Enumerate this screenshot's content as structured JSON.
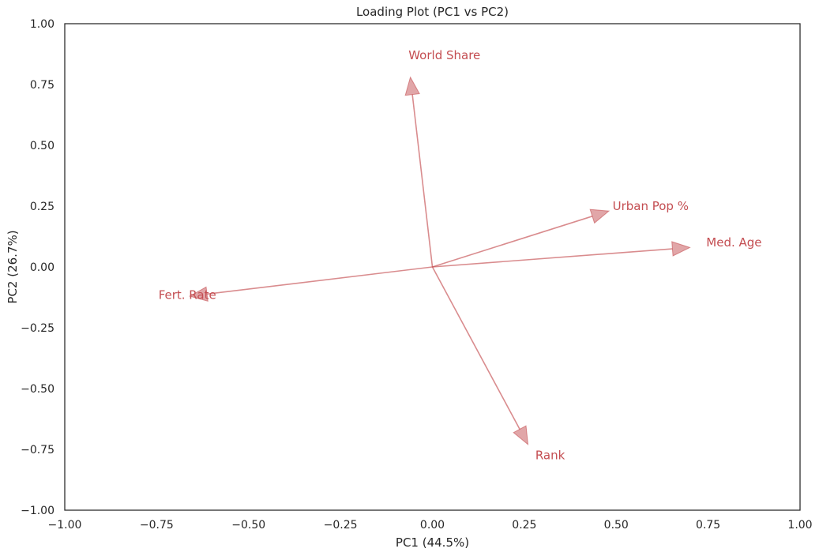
{
  "chart_data": {
    "type": "scatter",
    "subtype": "loading-plot-vectors",
    "title": "Loading Plot (PC1 vs PC2)",
    "xlabel": "PC1 (44.5%)",
    "ylabel": "PC2 (26.7%)",
    "xlim": [
      -1.0,
      1.0
    ],
    "ylim": [
      -1.0,
      1.0
    ],
    "xticks": [
      "−1.00",
      "−0.75",
      "−0.50",
      "−0.25",
      "0.00",
      "0.25",
      "0.50",
      "0.75",
      "1.00"
    ],
    "yticks": [
      "1.00",
      "0.75",
      "0.50",
      "0.25",
      "0.00",
      "−0.25",
      "−0.50",
      "−0.75",
      "−1.00"
    ],
    "xtick_values": [
      -1.0,
      -0.75,
      -0.5,
      -0.25,
      0.0,
      0.25,
      0.5,
      0.75,
      1.0
    ],
    "ytick_values": [
      1.0,
      0.75,
      0.5,
      0.25,
      0.0,
      -0.25,
      -0.5,
      -0.75,
      -1.0
    ],
    "grid": false,
    "arrow_color": "#c44e52",
    "label_color": "#c44e52",
    "vectors": [
      {
        "name": "World Share",
        "x": -0.06,
        "y": 0.78,
        "label_x": -0.065,
        "label_y": 0.87
      },
      {
        "name": "Urban Pop %",
        "x": 0.48,
        "y": 0.23,
        "label_x": 0.49,
        "label_y": 0.25
      },
      {
        "name": "Med. Age",
        "x": 0.7,
        "y": 0.08,
        "label_x": 0.745,
        "label_y": 0.1
      },
      {
        "name": "Fert. Rate",
        "x": -0.66,
        "y": -0.12,
        "label_x": -0.745,
        "label_y": -0.115
      },
      {
        "name": "Rank",
        "x": 0.26,
        "y": -0.73,
        "label_x": 0.28,
        "label_y": -0.775
      }
    ]
  }
}
